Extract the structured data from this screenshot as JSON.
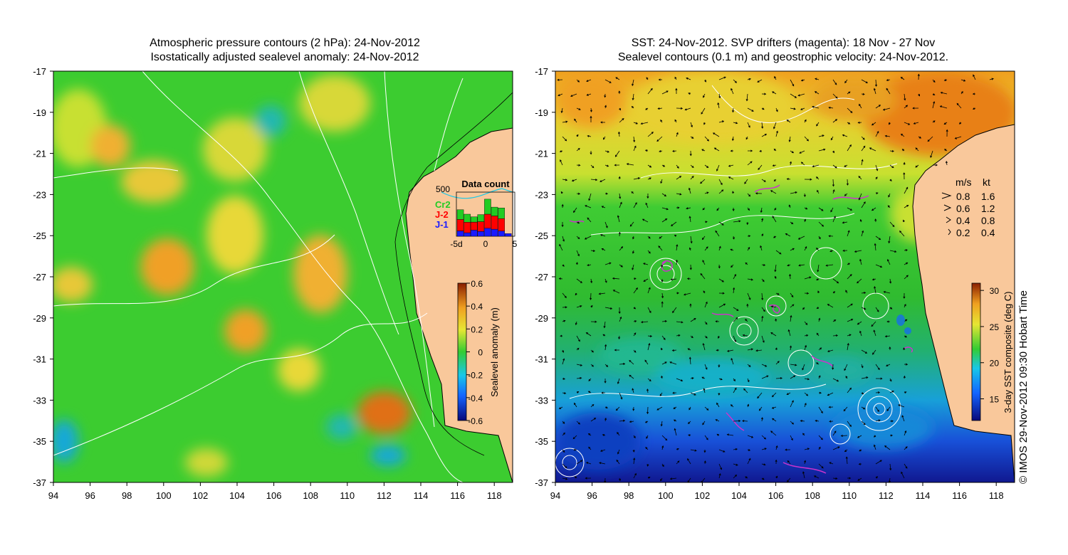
{
  "left_map": {
    "title_line1": "Atmospheric pressure contours (2 hPa): 24-Nov-2012",
    "title_line2": "Isostatically adjusted sealevel anomaly: 24-Nov-2012",
    "colorbar": {
      "label": "Sealevel anomaly (m)",
      "ticks": [
        "0.6",
        "0.4",
        "0.2",
        "0",
        "-0.2",
        "-0.4",
        "-0.6"
      ],
      "min": -0.6,
      "max": 0.6
    },
    "data_count_inset": {
      "title": "Data count",
      "ymax_label": "500",
      "x_ticks": [
        "-5d",
        "0",
        "5"
      ],
      "legend": [
        {
          "name": "Cr2",
          "color": "#22cc22"
        },
        {
          "name": "J-2",
          "color": "#ff0000"
        },
        {
          "name": "J-1",
          "color": "#1a1aff"
        }
      ],
      "bars": [
        {
          "J-1": 60,
          "J-2": 130,
          "Cr2": 110
        },
        {
          "J-1": 40,
          "J-2": 120,
          "Cr2": 90
        },
        {
          "J-1": 70,
          "J-2": 90,
          "Cr2": 60
        },
        {
          "J-1": 55,
          "J-2": 110,
          "Cr2": 80
        },
        {
          "J-1": 90,
          "J-2": 160,
          "Cr2": 170
        },
        {
          "J-1": 80,
          "J-2": 150,
          "Cr2": 100
        },
        {
          "J-1": 60,
          "J-2": 140,
          "Cr2": 120
        },
        {
          "J-1": 30,
          "J-2": 0,
          "Cr2": 0
        }
      ]
    }
  },
  "right_map": {
    "title_line1": "SST: 24-Nov-2012. SVP drifters (magenta): 18 Nov - 27 Nov",
    "title_line2": "Sealevel contours (0.1 m) and geostrophic velocity: 24-Nov-2012.",
    "colorbar": {
      "label": "3-day SST composite (deg C)",
      "ticks": [
        "30",
        "25",
        "20",
        "15"
      ],
      "min": 12,
      "max": 31
    },
    "velocity_legend": {
      "header_ms": "m/s",
      "header_kt": "kt",
      "rows": [
        {
          "ms": "0.8",
          "kt": "1.6"
        },
        {
          "ms": "0.6",
          "kt": "1.2"
        },
        {
          "ms": "0.4",
          "kt": "0.8"
        },
        {
          "ms": "0.2",
          "kt": "0.4"
        }
      ]
    }
  },
  "axes": {
    "lat_ticks": [
      "-17",
      "-19",
      "-21",
      "-23",
      "-25",
      "-27",
      "-29",
      "-31",
      "-33",
      "-35",
      "-37"
    ],
    "lon_ticks": [
      "94",
      "96",
      "98",
      "100",
      "102",
      "104",
      "106",
      "108",
      "110",
      "112",
      "114",
      "116",
      "118"
    ],
    "lat_range": [
      -37,
      -17
    ],
    "lon_range": [
      94,
      119
    ]
  },
  "credit": "© IMOS 29-Nov-2012 09:30 Hobart Time",
  "colors": {
    "land": "#f9c89b",
    "ocean_green": "#33cc33",
    "contour": "#ffffff",
    "drifter": "#cc33cc"
  }
}
